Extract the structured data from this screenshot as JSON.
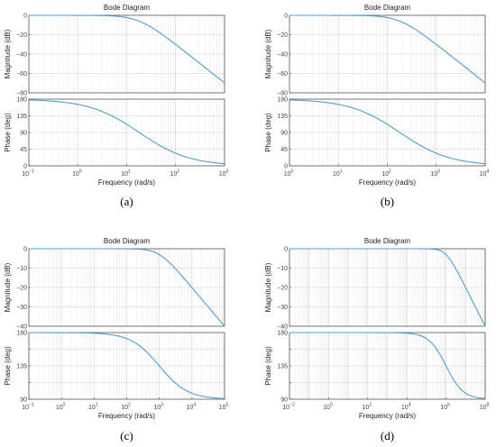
{
  "chart_data": [
    {
      "type": "line",
      "title": "Bode Diagram",
      "caption": "(a)",
      "xlabel": "Frequency  (rad/s)",
      "xscale": "log",
      "xlim_exp": [
        -1,
        3
      ],
      "xtick_base": "10",
      "xtick_exponents": [
        "−1",
        "0",
        "1",
        "2",
        "3"
      ],
      "grid": true,
      "magnitude": {
        "ylabel": "Magnitude (dB)",
        "ylim": [
          -80,
          0
        ],
        "yticks": [
          "0",
          "−20",
          "−40",
          "−60",
          "−80"
        ],
        "corner_rad_s": 18,
        "order": 2,
        "x": [
          0.1,
          1,
          10,
          20,
          50,
          100,
          300,
          1000
        ],
        "y": [
          0,
          0,
          -1,
          -4,
          -17,
          -29,
          -48,
          -71
        ]
      },
      "phase": {
        "ylabel": "Phase (deg)",
        "ylim": [
          0,
          180
        ],
        "yticks": [
          "180",
          "135",
          "90",
          "45",
          "0"
        ],
        "start_deg": 180,
        "end_deg": 0,
        "center_rad_s": 18,
        "slope": 0.85,
        "x": [
          0.1,
          1,
          10,
          18,
          100,
          1000
        ],
        "y": [
          177,
          170,
          120,
          90,
          25,
          3
        ]
      }
    },
    {
      "type": "line",
      "title": "Bode Diagram",
      "caption": "(b)",
      "xlabel": "Frequency  (rad/s)",
      "xscale": "log",
      "xlim_exp": [
        0,
        4
      ],
      "xtick_base": "10",
      "xtick_exponents": [
        "0",
        "1",
        "2",
        "3",
        "4"
      ],
      "grid": true,
      "magnitude": {
        "ylabel": "Magnitude (dB)",
        "ylim": [
          -80,
          0
        ],
        "yticks": [
          "0",
          "−20",
          "−40",
          "−60",
          "−80"
        ],
        "corner_rad_s": 180,
        "order": 2,
        "x": [
          1,
          10,
          100,
          200,
          500,
          1000,
          3000,
          10000
        ],
        "y": [
          0,
          0,
          -1,
          -4,
          -17,
          -29,
          -48,
          -71
        ]
      },
      "phase": {
        "ylabel": "Phase (deg)",
        "ylim": [
          0,
          180
        ],
        "yticks": [
          "180",
          "135",
          "90",
          "45",
          "0"
        ],
        "start_deg": 180,
        "end_deg": 0,
        "center_rad_s": 180,
        "slope": 0.85,
        "x": [
          1,
          10,
          100,
          180,
          1000,
          10000
        ],
        "y": [
          177,
          170,
          120,
          90,
          25,
          3
        ]
      }
    },
    {
      "type": "line",
      "title": "Bode Diagram",
      "caption": "(c)",
      "xlabel": "Frequency  (rad/s)",
      "xscale": "log",
      "xlim_exp": [
        -1,
        5
      ],
      "xtick_base": "10",
      "xtick_exponents": [
        "−1",
        "0",
        "1",
        "2",
        "3",
        "4",
        "5"
      ],
      "grid": true,
      "magnitude": {
        "ylabel": "Magnitude (dB)",
        "ylim": [
          -40,
          0
        ],
        "yticks": [
          "0",
          "−10",
          "−20",
          "−30",
          "−40"
        ],
        "corner_rad_s": 1000,
        "order": 1,
        "x": [
          0.1,
          100,
          1000,
          10000,
          100000
        ],
        "y": [
          0,
          0,
          -3,
          -20,
          -39
        ]
      },
      "phase": {
        "ylabel": "Phase (deg)",
        "ylim": [
          90,
          180
        ],
        "yticks": [
          "180",
          "",
          "135",
          "",
          "90"
        ],
        "start_deg": 180,
        "end_deg": 90,
        "center_rad_s": 1000,
        "slope": 1.0,
        "x": [
          0.1,
          100,
          1000,
          10000,
          100000
        ],
        "y": [
          180,
          175,
          135,
          96,
          91
        ]
      }
    },
    {
      "type": "line",
      "title": "Bode Diagram",
      "caption": "(d)",
      "xlabel": "Frequency  (rad/s)",
      "xscale": "log",
      "xlim_exp": [
        -2,
        8
      ],
      "xtick_base": "10",
      "xtick_exponents": [
        "−2",
        "0",
        "2",
        "4",
        "6",
        "8"
      ],
      "grid": true,
      "magnitude": {
        "ylabel": "Magnitude (dB)",
        "ylim": [
          -40,
          0
        ],
        "yticks": [
          "0",
          "−10",
          "−20",
          "−30",
          "−40"
        ],
        "corner_rad_s": 1000000,
        "order": 1,
        "x": [
          0.01,
          100000,
          1000000,
          10000000,
          100000000
        ],
        "y": [
          0,
          0,
          -3,
          -20,
          -39
        ]
      },
      "phase": {
        "ylabel": "Phase (deg)",
        "ylim": [
          90,
          180
        ],
        "yticks": [
          "180",
          "",
          "135",
          "",
          "90"
        ],
        "start_deg": 180,
        "end_deg": 90,
        "center_rad_s": 1000000,
        "slope": 1.0,
        "x": [
          0.01,
          100000,
          1000000,
          10000000,
          100000000
        ],
        "y": [
          180,
          175,
          135,
          96,
          91
        ]
      }
    }
  ],
  "colors": {
    "line": "#4d9ed1",
    "grid": "#e3e3e3",
    "axis": "#444444"
  }
}
